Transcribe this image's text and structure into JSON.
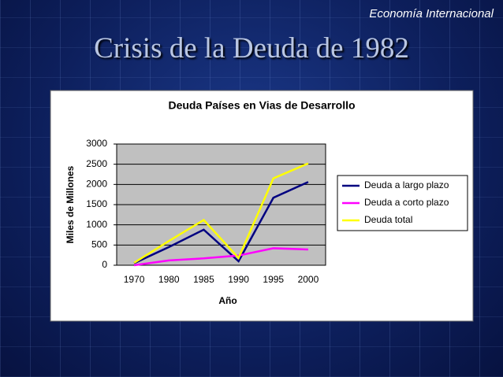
{
  "header": {
    "section": "Economía Internacional",
    "title": "Crisis de la Deuda de 1982"
  },
  "chart_data": {
    "type": "line",
    "title": "Deuda Países en Vias de Desarrollo",
    "x_label": "Año",
    "y_label": "Miles de Millones",
    "categories": [
      "1970",
      "1980",
      "1985",
      "1990",
      "1995",
      "2000"
    ],
    "series": [
      {
        "name": "Deuda a largo plazo",
        "color": "#000080",
        "values": [
          50,
          450,
          880,
          100,
          1670,
          2060
        ]
      },
      {
        "name": "Deuda a corto plazo",
        "color": "#ff00ff",
        "values": [
          0,
          120,
          170,
          240,
          420,
          390
        ]
      },
      {
        "name": "Deuda total",
        "color": "#ffff00",
        "values": [
          60,
          600,
          1120,
          180,
          2150,
          2520
        ]
      }
    ],
    "ylim": [
      0,
      3000
    ],
    "yticks": [
      0,
      500,
      1000,
      1500,
      2000,
      2500,
      3000
    ],
    "grid": true,
    "legend": "right",
    "plot_background": "#c0c0c0"
  }
}
